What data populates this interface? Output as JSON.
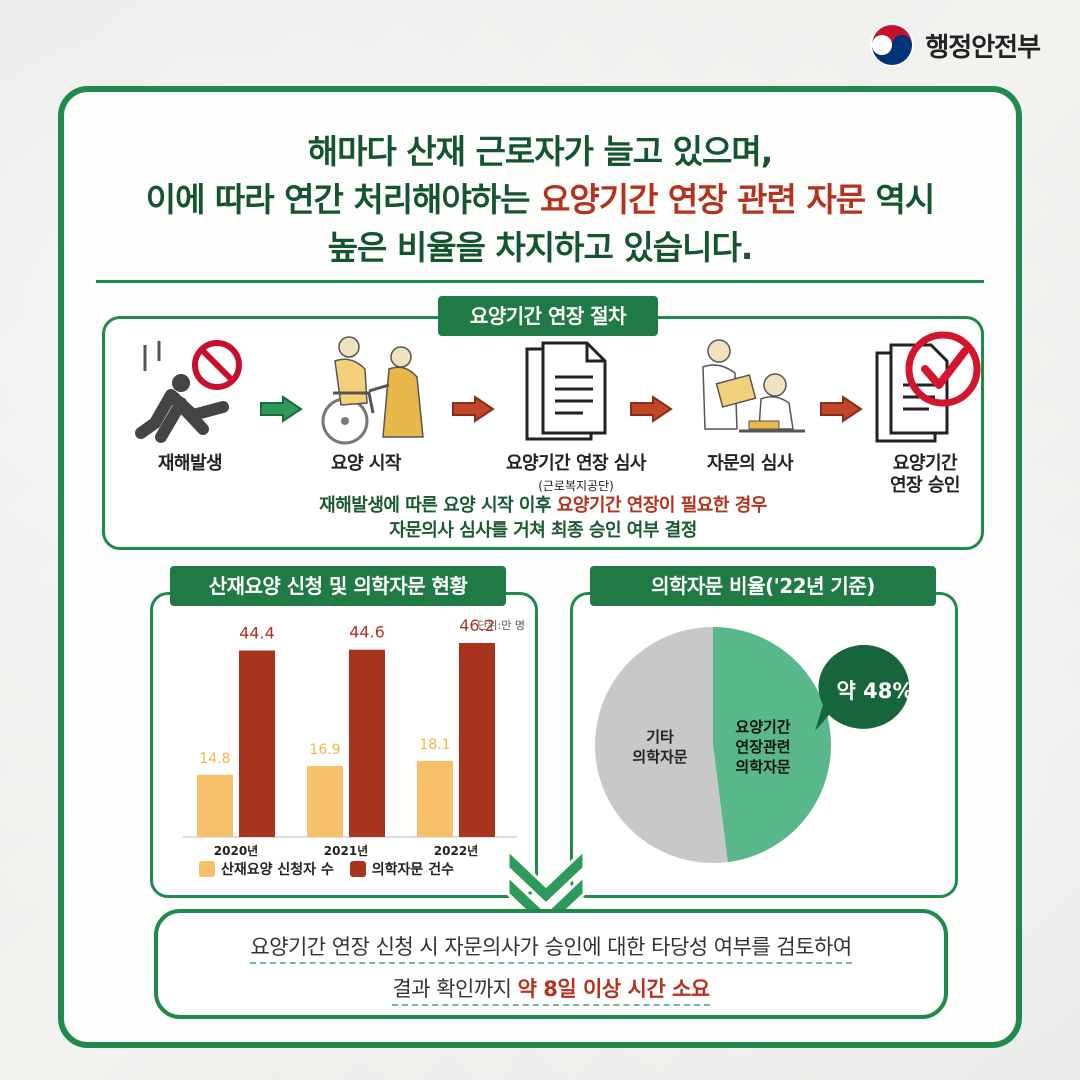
{
  "org": {
    "name": "행정안전부",
    "logo": "taegeuk-logo"
  },
  "headline": {
    "line1": "해마다 산재 근로자가 늘고 있으며,",
    "line2_a": "이에 따라 연간 처리해야하는 ",
    "line2_highlight": "요양기간 연장 관련 자문",
    "line2_b": " 역시",
    "line3": "높은 비율을 차지하고 있습니다."
  },
  "procedure": {
    "title": "요양기간 연장 절차",
    "steps": [
      {
        "label": "재해발생",
        "icon": "fall-warning-icon"
      },
      {
        "label": "요양 시작",
        "icon": "caregiver-icon"
      },
      {
        "label": "요양기간 연장 심사",
        "sub": "(근로복지공단)",
        "icon": "document-icon"
      },
      {
        "label": "자문의 심사",
        "icon": "doctor-review-icon"
      },
      {
        "label": "요양기간",
        "label2": "연장 승인",
        "icon": "approved-check-icon"
      }
    ],
    "desc_line1_a": "재해발생에 따른 요양 시작 이후 ",
    "desc_line1_highlight": "요양기간 연장이 필요한 경우",
    "desc_line2": "자문의사 심사를 거쳐 최종 승인 여부 결정"
  },
  "bar_section": {
    "title": "산재요양 신청 및 의학자문 현황"
  },
  "pie_section": {
    "title": "의학자문 비율('22년 기준)"
  },
  "chart_data": [
    {
      "type": "bar",
      "title": "산재요양 신청 및 의학자문 현황",
      "unit": "단위:만 명",
      "categories": [
        "2020년",
        "2021년",
        "2022년"
      ],
      "series": [
        {
          "name": "산재요양 신청자 수",
          "values": [
            14.8,
            16.9,
            18.1
          ],
          "value_labels": [
            "14.8",
            "16.9",
            "18.1"
          ],
          "color": "#f5c069"
        },
        {
          "name": "의학자문 건수",
          "values": [
            44.4,
            44.6,
            46.2
          ],
          "value_labels": [
            "44.4",
            "44.6",
            "46.2"
          ],
          "color": "#a8341d"
        }
      ],
      "ylim": [
        0,
        50
      ],
      "legend": "bottom"
    },
    {
      "type": "pie",
      "title": "의학자문 비율('22년 기준)",
      "slices": [
        {
          "label": "요양기간 연장관련 의학자문",
          "label_lines": [
            "요양기간",
            "연장관련",
            "의학자문"
          ],
          "value": 48,
          "color": "#58b88a"
        },
        {
          "label": "기타 의학자문",
          "label_lines": [
            "기타",
            "의학자문"
          ],
          "value": 52,
          "color": "#c8c8c8"
        }
      ],
      "annotation": "약 48%"
    }
  ],
  "bottom": {
    "line1": "요양기간 연장 신청 시 자문의사가 승인에 대한 타당성 여부를 검토하여",
    "line2_a": "결과 확인까지 ",
    "line2_highlight": "약 8일 이상 시간 소요"
  },
  "colors": {
    "brand_green": "#1f8a4c",
    "dark_green": "#14542e",
    "highlight_red": "#b3331e"
  }
}
